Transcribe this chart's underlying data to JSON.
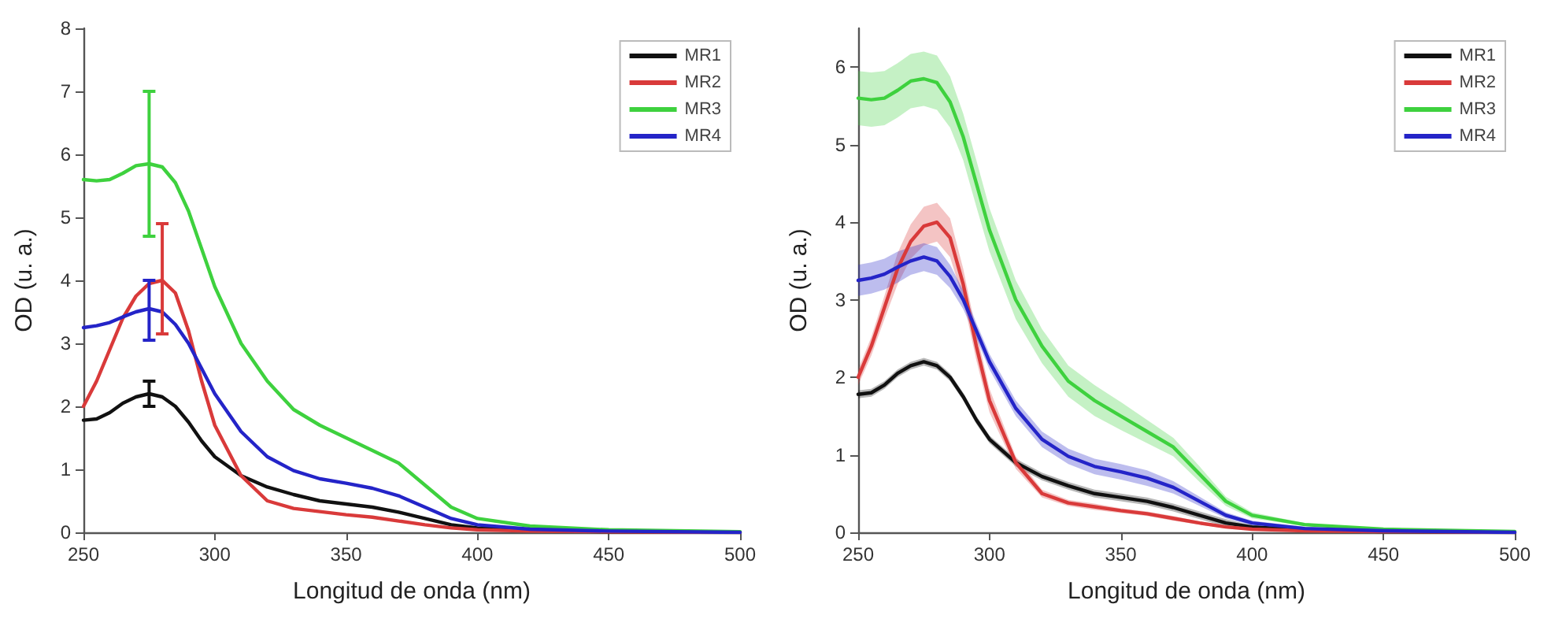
{
  "chart_data": [
    {
      "type": "line",
      "xlabel": "Longitud de onda (nm)",
      "ylabel": "OD (u. a.)",
      "x": [
        250,
        255,
        260,
        265,
        270,
        275,
        280,
        285,
        290,
        295,
        300,
        310,
        320,
        330,
        340,
        350,
        360,
        370,
        380,
        390,
        400,
        420,
        450,
        500
      ],
      "xlim": [
        250,
        500
      ],
      "xticks": [
        250,
        300,
        350,
        400,
        450,
        500
      ],
      "ylim": [
        0,
        8
      ],
      "yticks": [
        0,
        1,
        2,
        3,
        4,
        5,
        6,
        7,
        8
      ],
      "grid": false,
      "legend": "top right",
      "marker": "none",
      "line_style": "solid",
      "series": [
        {
          "name": "MR1",
          "color": "#111111",
          "values": [
            1.78,
            1.8,
            1.9,
            2.05,
            2.15,
            2.2,
            2.15,
            2.0,
            1.75,
            1.45,
            1.2,
            0.9,
            0.72,
            0.6,
            0.5,
            0.45,
            0.4,
            0.32,
            0.22,
            0.12,
            0.07,
            0.03,
            0.01,
            0
          ],
          "errors": [
            null,
            null,
            null,
            null,
            null,
            [
              2.0,
              2.4
            ],
            null,
            null,
            null,
            null,
            null,
            null,
            null,
            null,
            null,
            null,
            null,
            null,
            null,
            null,
            null,
            null,
            null,
            null
          ]
        },
        {
          "name": "MR2",
          "color": "#d93a3a",
          "values": [
            2.0,
            2.4,
            2.9,
            3.4,
            3.75,
            3.95,
            4.0,
            3.8,
            3.2,
            2.4,
            1.7,
            0.9,
            0.5,
            0.38,
            0.33,
            0.28,
            0.24,
            0.18,
            0.12,
            0.07,
            0.04,
            0.02,
            0.01,
            0
          ],
          "errors": [
            null,
            null,
            null,
            null,
            null,
            null,
            [
              3.15,
              4.9
            ],
            null,
            null,
            null,
            null,
            null,
            null,
            null,
            null,
            null,
            null,
            null,
            null,
            null,
            null,
            null,
            null,
            null
          ]
        },
        {
          "name": "MR3",
          "color": "#3ed13e",
          "values": [
            5.6,
            5.58,
            5.6,
            5.7,
            5.82,
            5.85,
            5.8,
            5.55,
            5.1,
            4.5,
            3.9,
            3.0,
            2.4,
            1.95,
            1.7,
            1.5,
            1.3,
            1.1,
            0.75,
            0.4,
            0.22,
            0.1,
            0.04,
            0.01
          ],
          "errors": [
            null,
            null,
            null,
            null,
            null,
            [
              4.7,
              7.0
            ],
            null,
            null,
            null,
            null,
            null,
            null,
            null,
            null,
            null,
            null,
            null,
            null,
            null,
            null,
            null,
            null,
            null,
            null
          ]
        },
        {
          "name": "MR4",
          "color": "#2424c8",
          "values": [
            3.25,
            3.28,
            3.33,
            3.42,
            3.5,
            3.55,
            3.5,
            3.3,
            3.0,
            2.6,
            2.2,
            1.6,
            1.2,
            0.98,
            0.85,
            0.78,
            0.7,
            0.58,
            0.4,
            0.22,
            0.12,
            0.05,
            0.02,
            0
          ],
          "errors": [
            null,
            null,
            null,
            null,
            null,
            [
              3.05,
              4.0
            ],
            null,
            null,
            null,
            null,
            null,
            null,
            null,
            null,
            null,
            null,
            null,
            null,
            null,
            null,
            null,
            null,
            null,
            null
          ]
        }
      ]
    },
    {
      "type": "line",
      "xlabel": "Longitud de onda (nm)",
      "ylabel": "OD (u. a.)",
      "x": [
        250,
        255,
        260,
        265,
        270,
        275,
        280,
        285,
        290,
        295,
        300,
        310,
        320,
        330,
        340,
        350,
        360,
        370,
        380,
        390,
        400,
        420,
        450,
        500
      ],
      "xlim": [
        250,
        500
      ],
      "xticks": [
        250,
        300,
        350,
        400,
        450,
        500
      ],
      "ylim": [
        0,
        6.5
      ],
      "yticks": [
        0,
        1,
        2,
        3,
        4,
        5,
        6
      ],
      "grid": false,
      "legend": "top right",
      "marker": "none",
      "line_style": "solid",
      "series": [
        {
          "name": "MR1",
          "color": "#111111",
          "values": [
            1.78,
            1.8,
            1.9,
            2.05,
            2.15,
            2.2,
            2.15,
            2.0,
            1.75,
            1.45,
            1.2,
            0.9,
            0.72,
            0.6,
            0.5,
            0.45,
            0.4,
            0.32,
            0.22,
            0.12,
            0.07,
            0.03,
            0.01,
            0
          ],
          "lower": [
            1.73,
            1.75,
            1.85,
            2.0,
            2.1,
            2.15,
            2.1,
            1.95,
            1.7,
            1.4,
            1.15,
            0.85,
            0.67,
            0.55,
            0.45,
            0.4,
            0.35,
            0.27,
            0.17,
            0.07,
            0.05,
            0.01,
            0,
            0
          ],
          "upper": [
            1.83,
            1.85,
            1.95,
            2.1,
            2.2,
            2.25,
            2.2,
            2.05,
            1.8,
            1.5,
            1.25,
            0.95,
            0.77,
            0.65,
            0.55,
            0.5,
            0.45,
            0.37,
            0.27,
            0.17,
            0.09,
            0.05,
            0.03,
            0.02
          ]
        },
        {
          "name": "MR2",
          "color": "#d93a3a",
          "values": [
            2.0,
            2.4,
            2.9,
            3.4,
            3.75,
            3.95,
            4.0,
            3.8,
            3.2,
            2.4,
            1.7,
            0.9,
            0.5,
            0.38,
            0.33,
            0.28,
            0.24,
            0.18,
            0.12,
            0.07,
            0.04,
            0.02,
            0.01,
            0
          ],
          "lower": [
            1.9,
            2.28,
            2.75,
            3.2,
            3.53,
            3.7,
            3.75,
            3.55,
            3.0,
            2.22,
            1.55,
            0.82,
            0.45,
            0.34,
            0.29,
            0.25,
            0.21,
            0.15,
            0.1,
            0.05,
            0.03,
            0.01,
            0,
            0
          ],
          "upper": [
            2.1,
            2.52,
            3.05,
            3.6,
            3.97,
            4.2,
            4.25,
            4.05,
            3.4,
            2.58,
            1.85,
            0.98,
            0.55,
            0.42,
            0.37,
            0.31,
            0.27,
            0.21,
            0.14,
            0.09,
            0.05,
            0.03,
            0.02,
            0
          ]
        },
        {
          "name": "MR3",
          "color": "#3ed13e",
          "values": [
            5.6,
            5.58,
            5.6,
            5.7,
            5.82,
            5.85,
            5.8,
            5.55,
            5.1,
            4.5,
            3.9,
            3.0,
            2.4,
            1.95,
            1.7,
            1.5,
            1.3,
            1.1,
            0.75,
            0.4,
            0.22,
            0.1,
            0.04,
            0.01
          ],
          "lower": [
            5.25,
            5.23,
            5.25,
            5.35,
            5.47,
            5.5,
            5.45,
            5.22,
            4.8,
            4.2,
            3.62,
            2.75,
            2.18,
            1.75,
            1.5,
            1.32,
            1.15,
            0.98,
            0.65,
            0.34,
            0.18,
            0.08,
            0.03,
            0.01
          ],
          "upper": [
            5.95,
            5.93,
            5.95,
            6.05,
            6.17,
            6.2,
            6.15,
            5.88,
            5.4,
            4.8,
            4.18,
            3.25,
            2.62,
            2.15,
            1.9,
            1.68,
            1.45,
            1.22,
            0.85,
            0.46,
            0.26,
            0.12,
            0.05,
            0.01
          ]
        },
        {
          "name": "MR4",
          "color": "#2424c8",
          "values": [
            3.25,
            3.28,
            3.33,
            3.42,
            3.5,
            3.55,
            3.5,
            3.3,
            3.0,
            2.6,
            2.2,
            1.6,
            1.2,
            0.98,
            0.85,
            0.78,
            0.7,
            0.58,
            0.4,
            0.22,
            0.12,
            0.05,
            0.02,
            0
          ],
          "lower": [
            3.05,
            3.08,
            3.13,
            3.22,
            3.32,
            3.37,
            3.32,
            3.15,
            2.88,
            2.5,
            2.1,
            1.5,
            1.1,
            0.88,
            0.75,
            0.68,
            0.6,
            0.5,
            0.34,
            0.18,
            0.09,
            0.03,
            0.01,
            0
          ],
          "upper": [
            3.45,
            3.48,
            3.53,
            3.62,
            3.68,
            3.73,
            3.68,
            3.45,
            3.12,
            2.7,
            2.3,
            1.7,
            1.3,
            1.08,
            0.95,
            0.88,
            0.8,
            0.66,
            0.46,
            0.26,
            0.15,
            0.07,
            0.03,
            0
          ]
        }
      ]
    }
  ]
}
